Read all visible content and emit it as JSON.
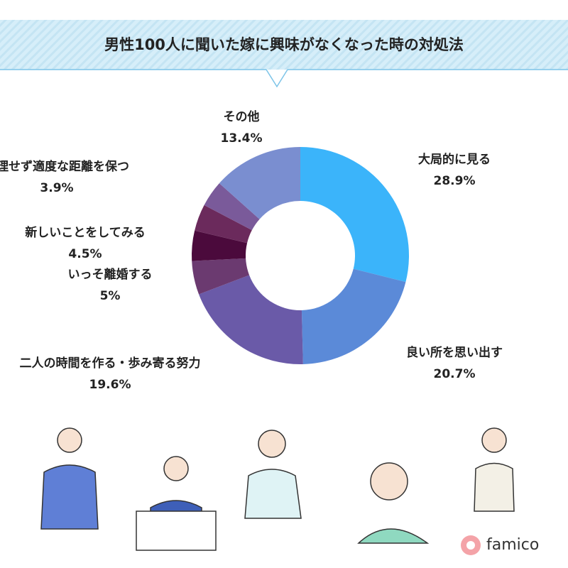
{
  "header": {
    "title": "男性100人に聞いた嫁に興味がなくなった時の対処法"
  },
  "chart_data": {
    "type": "donut",
    "categories": [
      "大局的に見る",
      "良い所を思い出す",
      "二人の時間を作る・歩み寄る努力",
      "いっそ離婚する",
      "新しいことをしてみる",
      null,
      "無理せず適度な距離を保つ",
      "その他"
    ],
    "values": [
      28.9,
      20.7,
      19.6,
      5,
      4.5,
      4,
      3.9,
      13.4
    ],
    "value_labels": [
      "28.9%",
      "20.7%",
      "19.6%",
      "5%",
      "4.5%",
      null,
      "3.9%",
      "13.4%"
    ],
    "colors": [
      "#3bb4fa",
      "#5b8ad8",
      "#6a5aa8",
      "#6b3a70",
      "#4b0a3c",
      "#6b2a5c",
      "#7a5a9a",
      "#7a8ed0"
    ]
  },
  "footer": {
    "brand": "famico"
  }
}
